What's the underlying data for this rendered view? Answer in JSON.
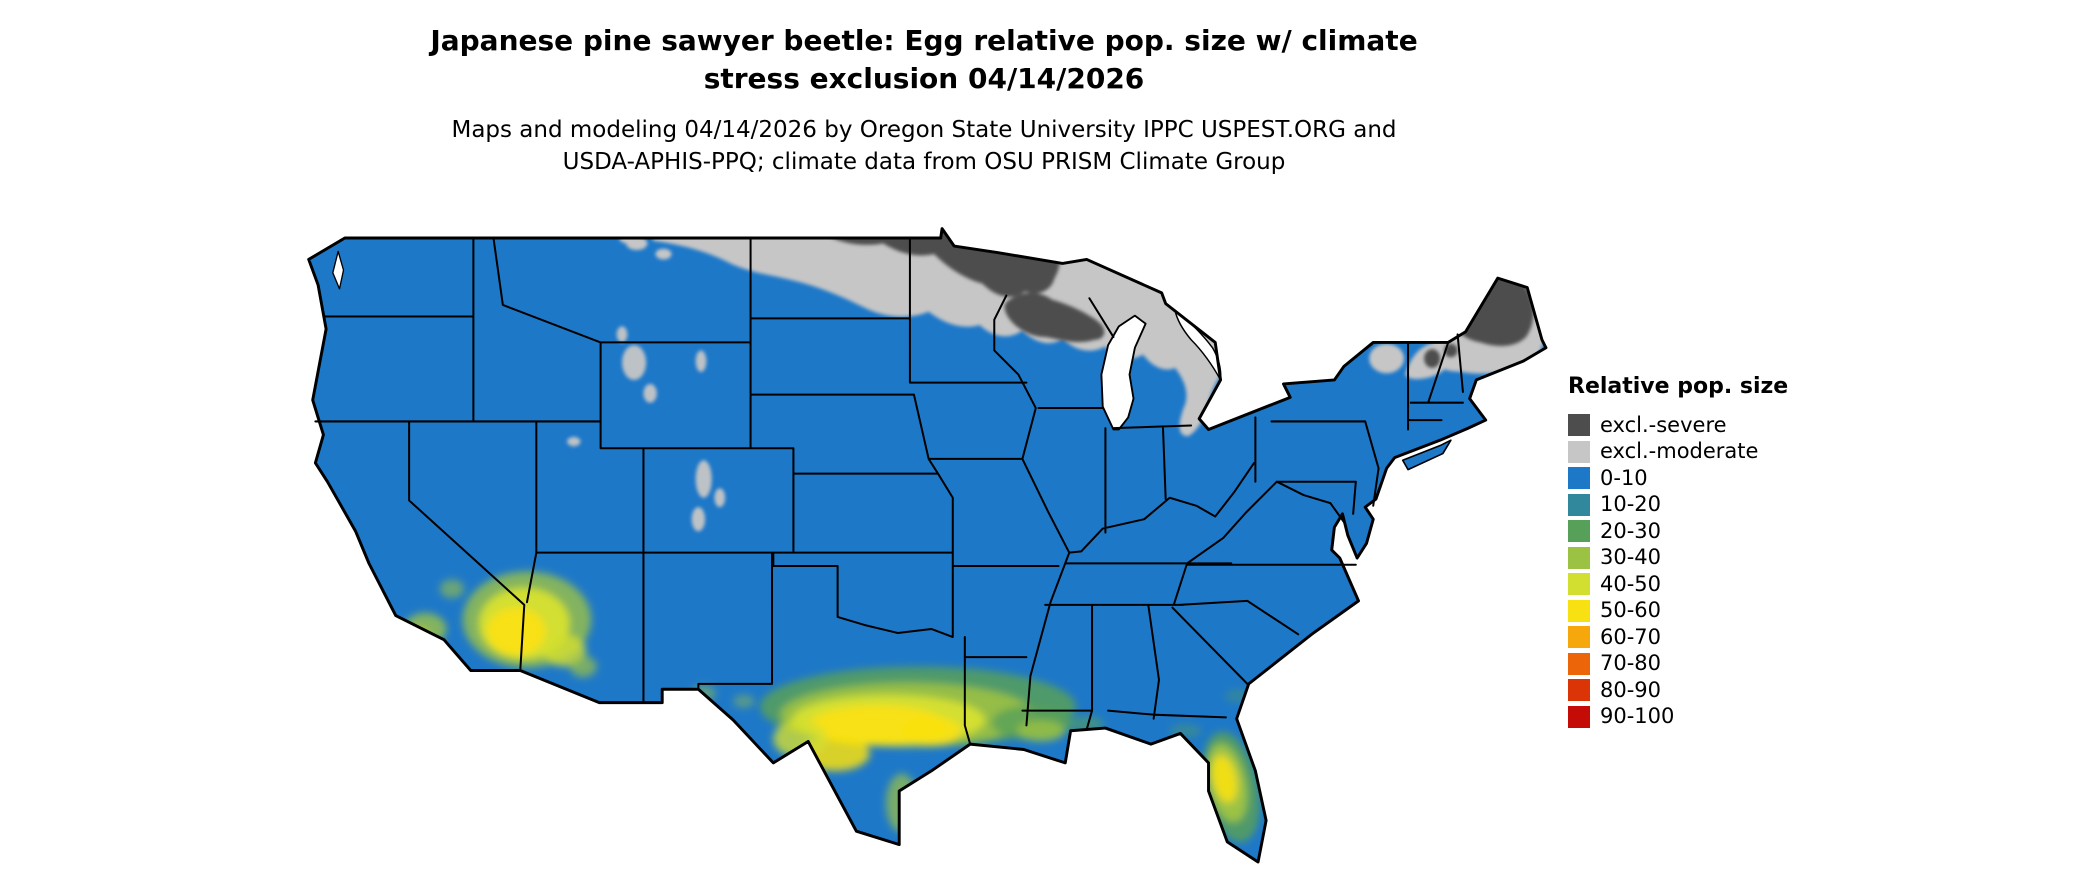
{
  "header": {
    "title_lines": [
      "Japanese pine sawyer beetle: Egg relative pop. size w/ climate",
      "stress exclusion 04/14/2026"
    ],
    "subtitle_lines": [
      "Maps and modeling 04/14/2026 by Oregon State University IPPC USPEST.ORG and",
      "USDA-APHIS-PPQ; climate data from OSU PRISM Climate Group"
    ]
  },
  "legend": {
    "title": "Relative pop. size",
    "items": [
      {
        "label": "excl.-severe",
        "color": "#4d4d4d"
      },
      {
        "label": "excl.-moderate",
        "color": "#c6c6c6"
      },
      {
        "label": "0-10",
        "color": "#1e78c8"
      },
      {
        "label": "10-20",
        "color": "#31889c"
      },
      {
        "label": "20-30",
        "color": "#57a05a"
      },
      {
        "label": "30-40",
        "color": "#9cc244"
      },
      {
        "label": "40-50",
        "color": "#d3df30"
      },
      {
        "label": "50-60",
        "color": "#f8e112"
      },
      {
        "label": "60-70",
        "color": "#f6a70b"
      },
      {
        "label": "70-80",
        "color": "#ec6509"
      },
      {
        "label": "80-90",
        "color": "#db3407"
      },
      {
        "label": "90-100",
        "color": "#c50b06"
      }
    ]
  },
  "map": {
    "region": "Contiguous United States",
    "dominant_class": "0-10",
    "excl_severe_visible": "northern North Dakota / northern Minnesota, upper Great Lakes, northern New England",
    "excl_moderate_visible": "northern border band from Montana through the Great Lakes and Michigan, northern New England, high Rockies",
    "higher_population_visible": "southern Arizona / southeastern California, southern Texas Gulf Coast into Louisiana, central Florida",
    "outline_color": "#000000",
    "background": "#ffffff"
  }
}
